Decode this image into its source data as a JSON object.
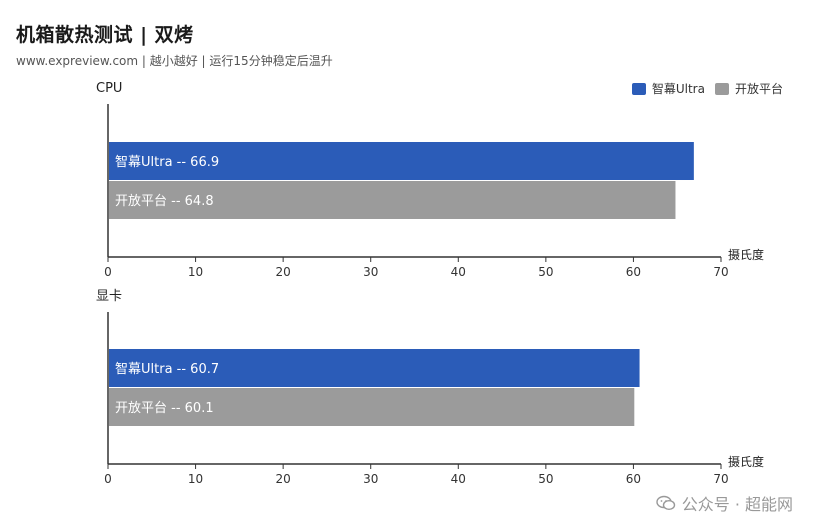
{
  "title": "机箱散热测试 | 双烤",
  "subtitle": "www.expreview.com | 越小越好 | 运行15分钟稳定后温升",
  "legend": [
    {
      "name": "智幕Ultra",
      "color": "#2b5cb8"
    },
    {
      "name": "开放平台",
      "color": "#9b9b9b"
    }
  ],
  "watermark": "公众号 · 超能网",
  "chart_data": [
    {
      "type": "bar",
      "orientation": "horizontal",
      "title": "CPU",
      "xlabel": "摄氏度",
      "xlim": [
        0,
        70
      ],
      "xticks": [
        0,
        10,
        20,
        30,
        40,
        50,
        60,
        70
      ],
      "series": [
        {
          "name": "智幕Ultra",
          "value": 66.9,
          "label": "智幕Ultra  --  66.9",
          "color": "#2b5cb8"
        },
        {
          "name": "开放平台",
          "value": 64.8,
          "label": "开放平台  --  64.8",
          "color": "#9b9b9b"
        }
      ]
    },
    {
      "type": "bar",
      "orientation": "horizontal",
      "title": "显卡",
      "xlabel": "摄氏度",
      "xlim": [
        0,
        70
      ],
      "xticks": [
        0,
        10,
        20,
        30,
        40,
        50,
        60,
        70
      ],
      "series": [
        {
          "name": "智幕Ultra",
          "value": 60.7,
          "label": "智幕Ultra  --  60.7",
          "color": "#2b5cb8"
        },
        {
          "name": "开放平台",
          "value": 60.1,
          "label": "开放平台  --  60.1",
          "color": "#9b9b9b"
        }
      ]
    }
  ]
}
